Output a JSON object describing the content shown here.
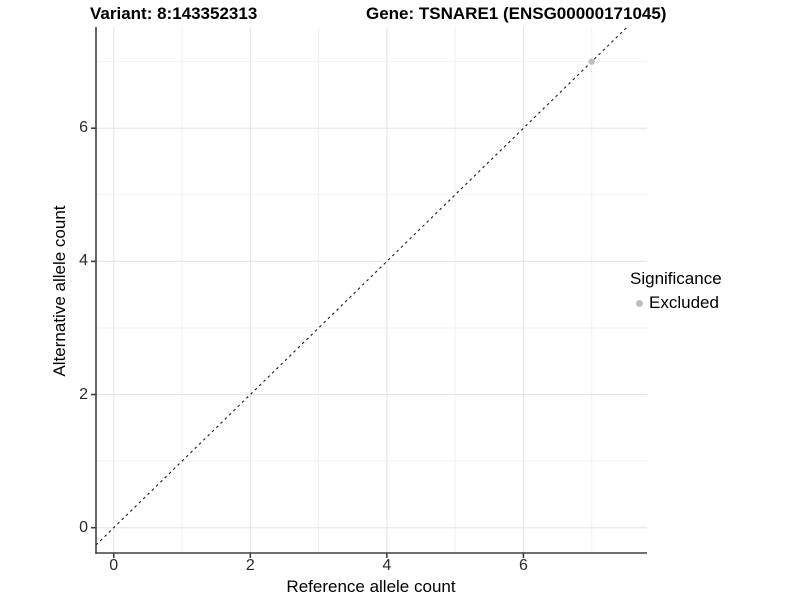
{
  "chart_data": {
    "type": "scatter",
    "title_left": "Variant: 8:143352313",
    "title_right": "Gene: TSNARE1 (ENSG00000171045)",
    "xlabel": "Reference allele count",
    "ylabel": "Alternative allele count",
    "xlim": [
      -0.26,
      7.81
    ],
    "ylim": [
      -0.38,
      7.52
    ],
    "x_ticks": [
      0,
      2,
      4,
      6
    ],
    "y_ticks": [
      0,
      2,
      4,
      6
    ],
    "x_minor_ticks": [
      1,
      3,
      5,
      7
    ],
    "y_minor_ticks": [
      1,
      3,
      5,
      7
    ],
    "grid": "major and minor gridlines, white panel",
    "reference_line": {
      "type": "identity",
      "slope": 1,
      "intercept": 0,
      "style": "dashed",
      "color": "#1a1a1a"
    },
    "series": [
      {
        "name": "Excluded",
        "color": "#bebebe",
        "points": [
          {
            "x": 7,
            "y": 7
          }
        ]
      }
    ],
    "legend": {
      "title": "Significance",
      "position": "right",
      "entries": [
        {
          "label": "Excluded",
          "color": "#bebebe",
          "marker": "circle"
        }
      ]
    }
  },
  "colors": {
    "background": "#ffffff",
    "grid_major": "#e4e4e4",
    "grid_minor": "#f1f1f1",
    "axis_line": "#404040",
    "tick_label_text": "#2b2b2b",
    "title_text": "#000000",
    "point_excluded": "#bebebe"
  }
}
